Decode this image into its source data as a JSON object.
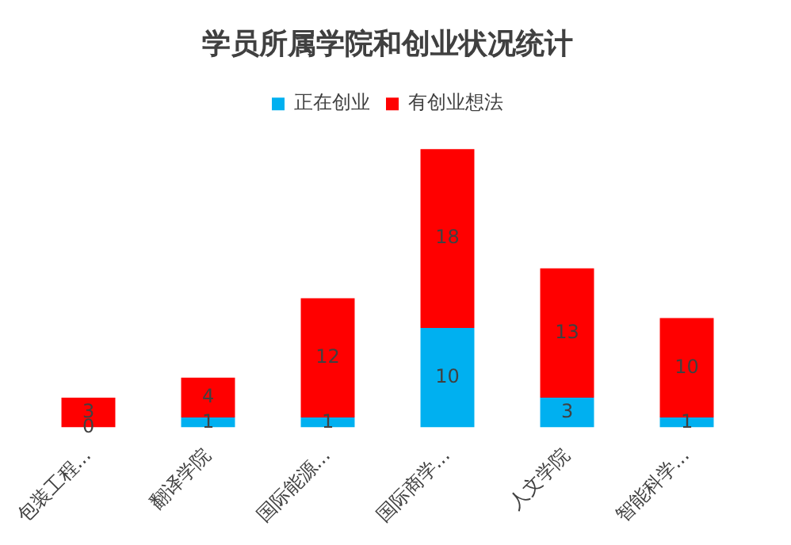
{
  "chart_data": {
    "type": "bar",
    "title": "学员所属学院和创业状况统计",
    "categories": [
      "包装工程...",
      "翻译学院",
      "国际能源...",
      "国际商学...",
      "人文学院",
      "智能科学..."
    ],
    "stacked": true,
    "series": [
      {
        "name": "正在创业",
        "color": "#00b0f0",
        "values": [
          0,
          1,
          1,
          10,
          3,
          1
        ]
      },
      {
        "name": "有创业想法",
        "color": "#ff0000",
        "values": [
          3,
          4,
          12,
          18,
          13,
          10
        ]
      }
    ],
    "data_labels": true,
    "legend": "top",
    "tick_labels": "x"
  }
}
